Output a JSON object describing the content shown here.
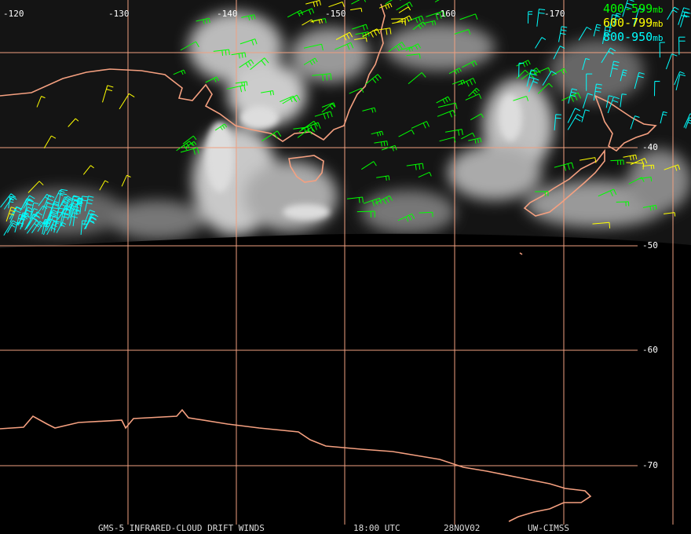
{
  "map": {
    "lon_labels": [
      "-120",
      "-130",
      "-140",
      "-150",
      "-160",
      "-170"
    ],
    "lat_labels": [
      "-40",
      "-50",
      "-60",
      "-70"
    ],
    "legend": [
      {
        "label": "400-599",
        "unit": "mb",
        "color": "#00ff00"
      },
      {
        "label": "600-799",
        "unit": "mb",
        "color": "#ffff00"
      },
      {
        "label": "800-950",
        "unit": "mb",
        "color": "#00ffff"
      }
    ],
    "footer": [
      "GMS-5 INFRARED-CLOUD DRIFT WINDS",
      "18:00 UTC",
      "28NOV02",
      "UW-CIMSS"
    ]
  }
}
